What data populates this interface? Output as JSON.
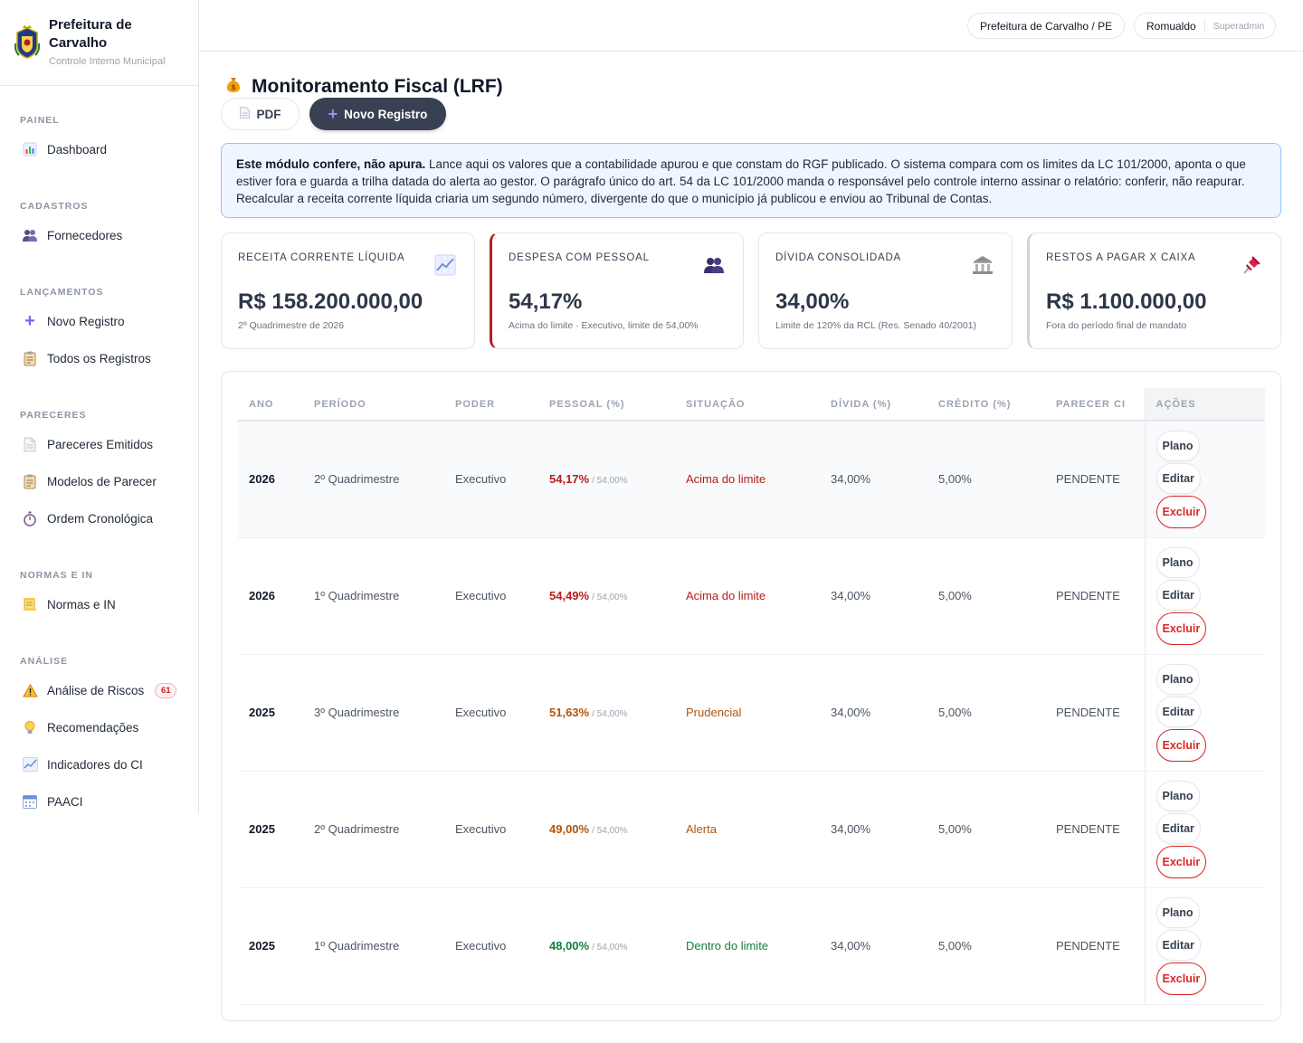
{
  "brand": {
    "title": "Prefeitura de Carvalho",
    "subtitle": "Controle Interno Municipal"
  },
  "sidebar": {
    "sections": [
      {
        "label": "PAINEL",
        "items": [
          {
            "label": "Dashboard",
            "icon": "bar-chart-icon"
          }
        ]
      },
      {
        "label": "CADASTROS",
        "items": [
          {
            "label": "Fornecedores",
            "icon": "people-icon"
          }
        ]
      },
      {
        "label": "LANÇAMENTOS",
        "items": [
          {
            "label": "Novo Registro",
            "icon": "plus-icon"
          },
          {
            "label": "Todos os Registros",
            "icon": "clipboard-icon"
          }
        ]
      },
      {
        "label": "PARECERES",
        "items": [
          {
            "label": "Pareceres Emitidos",
            "icon": "document-icon"
          },
          {
            "label": "Modelos de Parecer",
            "icon": "clipboard-icon"
          },
          {
            "label": "Ordem Cronológica",
            "icon": "stopwatch-icon"
          }
        ]
      },
      {
        "label": "NORMAS E IN",
        "items": [
          {
            "label": "Normas e IN",
            "icon": "scroll-icon"
          }
        ]
      },
      {
        "label": "ANÁLISE",
        "items": [
          {
            "label": "Análise de Riscos",
            "icon": "warning-icon",
            "badge": "61"
          },
          {
            "label": "Recomendações",
            "icon": "lightbulb-icon"
          },
          {
            "label": "Indicadores do CI",
            "icon": "trend-chart-icon"
          },
          {
            "label": "PAACI",
            "icon": "calendar-icon"
          }
        ]
      }
    ]
  },
  "topbar": {
    "org": "Prefeitura de Carvalho / PE",
    "user": "Romualdo",
    "role": "Superadmin"
  },
  "page": {
    "title": "Monitoramento Fiscal (LRF)",
    "pdf_label": "PDF",
    "new_label": "Novo Registro"
  },
  "info": {
    "bold": "Este módulo confere, não apura.",
    "text": " Lance aqui os valores que a contabilidade apurou e que constam do RGF publicado. O sistema compara com os limites da LC 101/2000, aponta o que estiver fora e guarda a trilha datada do alerta ao gestor. O parágrafo único do art. 54 da LC 101/2000 manda o responsável pelo controle interno assinar o relatório: conferir, não reapurar. Recalcular a receita corrente líquida criaria um segundo número, divergente do que o município já publicou e enviou ao Tribunal de Contas."
  },
  "kpis": [
    {
      "label": "RECEITA CORRENTE LÍQUIDA",
      "value": "R$ 158.200.000,00",
      "sub": "2º Quadrimestre de 2026",
      "icon": "trend-chart-icon"
    },
    {
      "label": "DESPESA COM PESSOAL",
      "value": "54,17%",
      "sub": "Acima do limite · Executivo, limite de 54,00%",
      "icon": "people-icon"
    },
    {
      "label": "DÍVIDA CONSOLIDADA",
      "value": "34,00%",
      "sub": "Limite de 120% da RCL (Res. Senado 40/2001)",
      "icon": "bank-icon"
    },
    {
      "label": "RESTOS A PAGAR X CAIXA",
      "value": "R$ 1.100.000,00",
      "sub": "Fora do período final de mandato",
      "icon": "pushpin-icon"
    }
  ],
  "table": {
    "headers": [
      "ANO",
      "PERÍODO",
      "PODER",
      "PESSOAL (%)",
      "SITUAÇÃO",
      "DÍVIDA (%)",
      "CRÉDITO (%)",
      "PARECER CI",
      "AÇÕES"
    ],
    "actions": {
      "plano": "Plano",
      "editar": "Editar",
      "excluir": "Excluir"
    },
    "rows": [
      {
        "ano": "2026",
        "periodo": "2º Quadrimestre",
        "poder": "Executivo",
        "pessoal": "54,17%",
        "limite": "/ 54,00%",
        "situacao": "Acima do limite",
        "status": "red",
        "divida": "34,00%",
        "credito": "5,00%",
        "parecer": "PENDENTE"
      },
      {
        "ano": "2026",
        "periodo": "1º Quadrimestre",
        "poder": "Executivo",
        "pessoal": "54,49%",
        "limite": "/ 54,00%",
        "situacao": "Acima do limite",
        "status": "red",
        "divida": "34,00%",
        "credito": "5,00%",
        "parecer": "PENDENTE"
      },
      {
        "ano": "2025",
        "periodo": "3º Quadrimestre",
        "poder": "Executivo",
        "pessoal": "51,63%",
        "limite": "/ 54,00%",
        "situacao": "Prudencial",
        "status": "amber",
        "divida": "34,00%",
        "credito": "5,00%",
        "parecer": "PENDENTE"
      },
      {
        "ano": "2025",
        "periodo": "2º Quadrimestre",
        "poder": "Executivo",
        "pessoal": "49,00%",
        "limite": "/ 54,00%",
        "situacao": "Alerta",
        "status": "amber",
        "divida": "34,00%",
        "credito": "5,00%",
        "parecer": "PENDENTE"
      },
      {
        "ano": "2025",
        "periodo": "1º Quadrimestre",
        "poder": "Executivo",
        "pessoal": "48,00%",
        "limite": "/ 54,00%",
        "situacao": "Dentro do limite",
        "status": "green",
        "divida": "34,00%",
        "credito": "5,00%",
        "parecer": "PENDENTE"
      }
    ]
  },
  "colors": {
    "danger": "#b91c1c",
    "warning": "#b45309",
    "success": "#15803d",
    "primary_dark": "#374151",
    "info_bg": "#eff6ff"
  }
}
